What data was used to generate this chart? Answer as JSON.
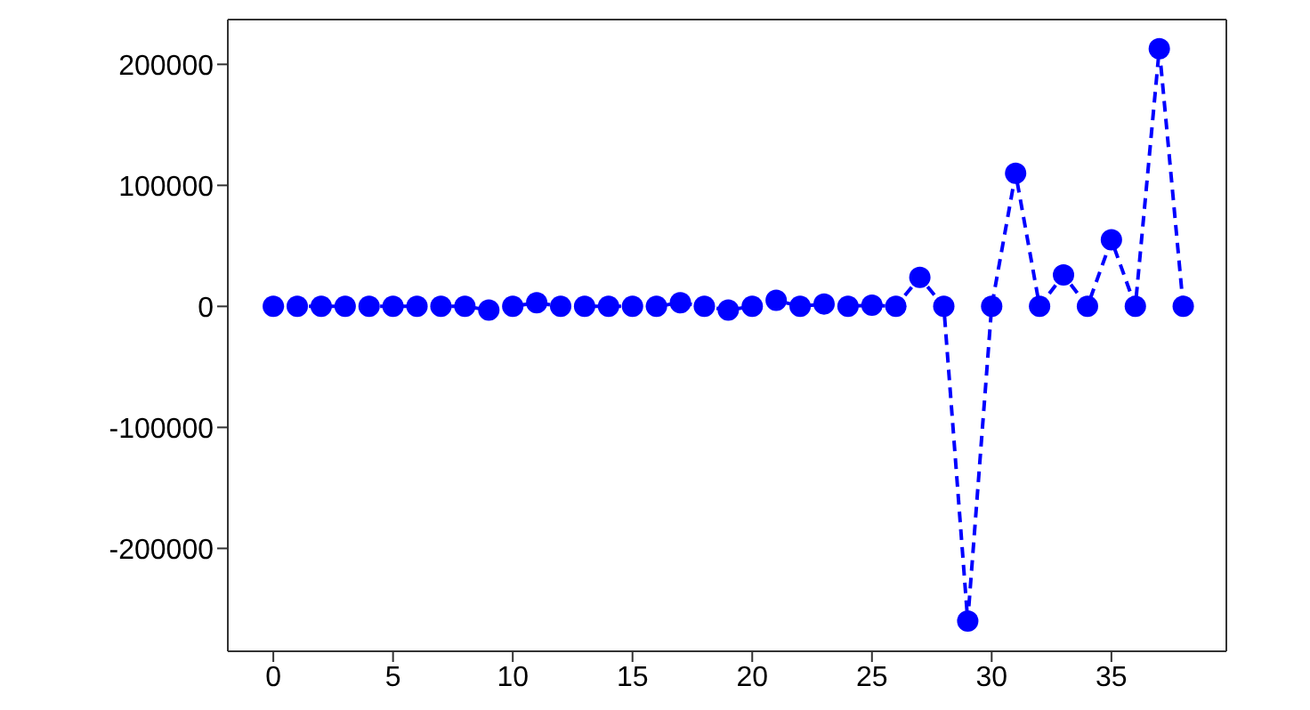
{
  "chart_data": {
    "type": "line",
    "x": [
      0,
      1,
      2,
      3,
      4,
      5,
      6,
      7,
      8,
      9,
      10,
      11,
      12,
      13,
      14,
      15,
      16,
      17,
      18,
      19,
      20,
      21,
      22,
      23,
      24,
      25,
      26,
      27,
      28,
      29,
      30,
      31,
      32,
      33,
      34,
      35,
      36,
      37,
      38
    ],
    "values": [
      0,
      0,
      0,
      0,
      0,
      0,
      0,
      0,
      0,
      -3000,
      0,
      3000,
      0,
      0,
      0,
      0,
      0,
      3000,
      0,
      -3000,
      0,
      5000,
      0,
      2000,
      0,
      1000,
      0,
      24000,
      0,
      -260000,
      0,
      110000,
      0,
      26000,
      0,
      55000,
      0,
      213000,
      0
    ],
    "color": "#0000ff",
    "marker": "circle",
    "line_style": "dashed",
    "xlim": [
      -1.9,
      39.8
    ],
    "xticks": [
      0,
      5,
      10,
      15,
      20,
      25,
      30,
      35
    ],
    "ylim": [
      -285000,
      237000
    ],
    "yticks": [
      -200000,
      -100000,
      0,
      100000,
      200000
    ],
    "grid": false
  }
}
